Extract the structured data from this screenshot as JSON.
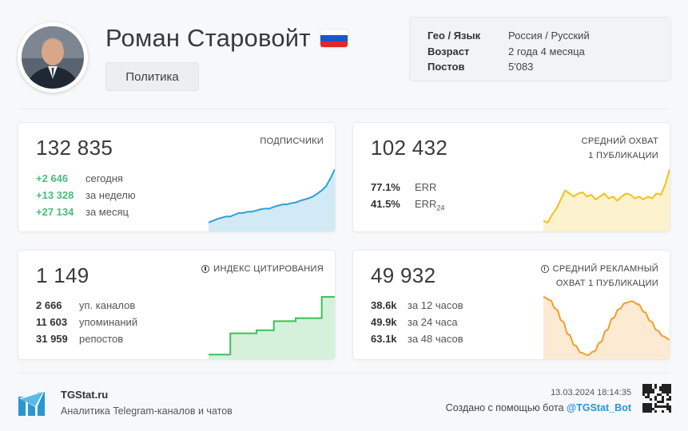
{
  "header": {
    "channel_name": "Роман Старовойт",
    "flag_icon": "russia-flag-icon",
    "category": "Политика",
    "meta": [
      {
        "key": "Гео / Язык",
        "value": "Россия / Русский"
      },
      {
        "key": "Возраст",
        "value": "2 года 4 месяца"
      },
      {
        "key": "Постов",
        "value": "5'083"
      }
    ]
  },
  "cards": {
    "subscribers": {
      "value": "132 835",
      "title": "ПОДПИСЧИКИ",
      "stats": [
        {
          "num": "+2 646",
          "label": "сегодня"
        },
        {
          "num": "+13 328",
          "label": "за неделю"
        },
        {
          "num": "+27 134",
          "label": "за месяц"
        }
      ],
      "color": "#2f9fd6",
      "trend": [
        0.12,
        0.15,
        0.18,
        0.2,
        0.22,
        0.22,
        0.25,
        0.28,
        0.28,
        0.3,
        0.3,
        0.32,
        0.34,
        0.35,
        0.35,
        0.38,
        0.4,
        0.42,
        0.42,
        0.44,
        0.45,
        0.48,
        0.5,
        0.52,
        0.55,
        0.6,
        0.65,
        0.72,
        0.85,
        1.0
      ]
    },
    "reach": {
      "value": "102 432",
      "title_line1": "СРЕДНИЙ ОХВАТ",
      "title_line2": "1 ПУБЛИКАЦИИ",
      "stats": [
        {
          "num": "77.1%",
          "label": "ERR"
        },
        {
          "num": "41.5%",
          "label": "ERR",
          "sub": "24"
        }
      ],
      "color": "#f2c21a",
      "trend": [
        0.15,
        0.12,
        0.25,
        0.35,
        0.5,
        0.65,
        0.6,
        0.55,
        0.6,
        0.62,
        0.55,
        0.58,
        0.5,
        0.55,
        0.6,
        0.52,
        0.55,
        0.48,
        0.55,
        0.6,
        0.58,
        0.52,
        0.55,
        0.5,
        0.55,
        0.52,
        0.6,
        0.58,
        0.75,
        1.0
      ]
    },
    "citation": {
      "value": "1 149",
      "title": "ИНДЕКС ЦИТИРОВАНИЯ",
      "stats": [
        {
          "num": "2 666",
          "label": "уп. каналов"
        },
        {
          "num": "11 603",
          "label": "упоминаний"
        },
        {
          "num": "31 959",
          "label": "репостов"
        }
      ],
      "color": "#3fbf5a",
      "trend": [
        0.05,
        0.05,
        0.05,
        0.05,
        0.05,
        0.4,
        0.4,
        0.4,
        0.4,
        0.4,
        0.4,
        0.45,
        0.45,
        0.45,
        0.45,
        0.6,
        0.6,
        0.6,
        0.6,
        0.6,
        0.65,
        0.65,
        0.65,
        0.65,
        0.65,
        0.65,
        1.0,
        1.0,
        1.0,
        1.0
      ]
    },
    "ad_reach": {
      "value": "49 932",
      "title_line1": "СРЕДНИЙ РЕКЛАМНЫЙ",
      "title_line2": "ОХВАТ 1 ПУБЛИКАЦИИ",
      "stats": [
        {
          "num": "38.6k",
          "label": "за 12 часов"
        },
        {
          "num": "49.9k",
          "label": "за 24 часа"
        },
        {
          "num": "63.1k",
          "label": "за 48 часов"
        }
      ],
      "color": "#f0a030",
      "trend": [
        1.0,
        0.95,
        0.8,
        0.6,
        0.38,
        0.2,
        0.08,
        0.04,
        0.1,
        0.25,
        0.45,
        0.65,
        0.8,
        0.9,
        0.93,
        0.88,
        0.75,
        0.6,
        0.45,
        0.35,
        0.3
      ]
    }
  },
  "footer": {
    "brand": "TGStat.ru",
    "tagline": "Аналитика Telegram-каналов и чатов",
    "datetime": "13.03.2024 18:14:35",
    "created_text": "Создано с помощью бота",
    "bot_handle": "@TGStat_Bot"
  }
}
